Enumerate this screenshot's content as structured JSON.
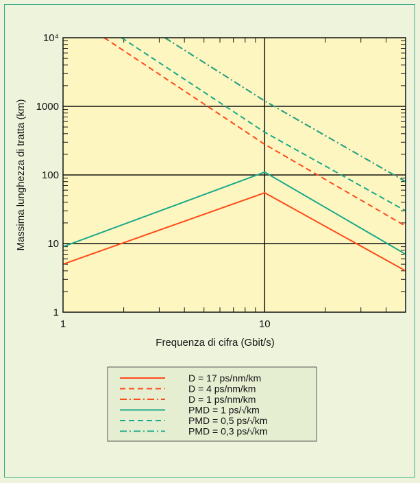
{
  "chart_data": {
    "type": "line",
    "xlabel": "Frequenza di cifra (Gbit/s)",
    "ylabel": "Massima lunghezza di tratta (km)",
    "x_scale": "log",
    "y_scale": "log",
    "xlim": [
      1,
      50
    ],
    "ylim": [
      1,
      10000
    ],
    "x_ticks": [
      "1",
      "10"
    ],
    "y_ticks": [
      "1",
      "10",
      "100",
      "1000",
      "10⁴"
    ],
    "grid": true,
    "legend_position": "bottom",
    "series": [
      {
        "name": "D   = 17 ps/nm/km",
        "color": "#ff4a1a",
        "dash": "solid",
        "x": [
          1,
          10,
          50
        ],
        "y": [
          5,
          55,
          4
        ]
      },
      {
        "name": "D   = 4 ps/nm/km",
        "color": "#ff4a1a",
        "dash": "dash",
        "x": [
          1.6,
          10,
          50
        ],
        "y": [
          10000,
          280,
          18
        ]
      },
      {
        "name": "D   = 1 ps/nm/km",
        "color": "#ff4a1a",
        "dash": "dashdot",
        "x": [
          3.2,
          10,
          50
        ],
        "y": [
          10000,
          1200,
          80
        ]
      },
      {
        "name": "PMD = 1 ps/√km",
        "color": "#19a88a",
        "dash": "solid",
        "x": [
          1,
          10,
          50
        ],
        "y": [
          9,
          110,
          7
        ]
      },
      {
        "name": "PMD = 0,5 ps/√km",
        "color": "#19a88a",
        "dash": "dash",
        "x": [
          1.95,
          10,
          50
        ],
        "y": [
          10000,
          420,
          30
        ]
      },
      {
        "name": "PMD = 0,3 ps/√km",
        "color": "#19a88a",
        "dash": "dashdot",
        "x": [
          3.2,
          10,
          50
        ],
        "y": [
          10000,
          1200,
          80
        ]
      }
    ],
    "colors": {
      "plot_bg": "#fdf6c0",
      "page_bg": "#eef4dc",
      "legend_bg": "#e6eed2"
    }
  }
}
